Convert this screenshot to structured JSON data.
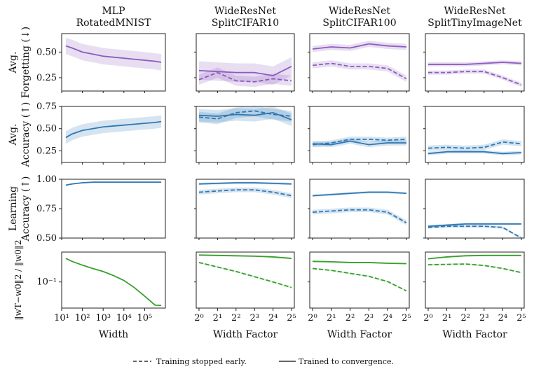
{
  "colors": {
    "forgetting": "#8e5bbf",
    "accuracy": "#2f78b4",
    "learning": "#2f78b4",
    "weight": "#37a02c"
  },
  "columns": [
    {
      "model": "MLP",
      "dataset": "RotatedMNIST",
      "xlabel": "Width"
    },
    {
      "model": "WideResNet",
      "dataset": "SplitCIFAR10",
      "xlabel": "Width Factor"
    },
    {
      "model": "WideResNet",
      "dataset": "SplitCIFAR100",
      "xlabel": "Width Factor"
    },
    {
      "model": "WideResNet",
      "dataset": "SplitTinyImageNet",
      "xlabel": "Width Factor"
    }
  ],
  "rows": [
    {
      "label_1": "Avg.",
      "label_2": "Forgetting (↓)",
      "yticks": [
        "0.25",
        "0.50"
      ]
    },
    {
      "label_1": "Avg.",
      "label_2": "Accuracy (↑)",
      "yticks": [
        "0.25",
        "0.50",
        "0.75"
      ]
    },
    {
      "label_1": "Learning",
      "label_2": "Accuracy (↑)",
      "yticks": [
        "0.50",
        "0.75",
        "1.00"
      ]
    },
    {
      "label_1": "‖wT−w0‖2 / ‖w0‖2",
      "label_2": "",
      "yticks": [
        "10⁻¹"
      ]
    }
  ],
  "legend": {
    "early": "Training stopped early.",
    "converged": "Trained to convergence."
  },
  "chart_data": {
    "type": "line",
    "x_mlp_log10": [
      1.2,
      1.5,
      2,
      2.5,
      3,
      3.5,
      4,
      4.5,
      5,
      5.5,
      5.8
    ],
    "x_mlp_ticks": [
      "10¹",
      "10²",
      "10³",
      "10⁴",
      "10⁵"
    ],
    "x_wrn_log2": [
      0,
      1,
      2,
      3,
      4,
      5
    ],
    "x_wrn_ticks": [
      "2⁰",
      "2¹",
      "2²",
      "2³",
      "2⁴",
      "2⁵"
    ],
    "ylims": [
      [
        0.12,
        0.68
      ],
      [
        0.12,
        0.75
      ],
      [
        0.5,
        1.0
      ],
      [
        -1.7,
        -0.2
      ]
    ],
    "panels": [
      {
        "row": 0,
        "col": 0,
        "series": [
          {
            "style": "solid",
            "values": [
              0.56,
              0.54,
              0.5,
              0.48,
              0.46,
              0.45,
              0.44,
              0.43,
              0.42,
              0.41,
              0.4
            ],
            "band": 0.08
          }
        ]
      },
      {
        "row": 0,
        "col": 1,
        "series": [
          {
            "style": "solid",
            "values": [
              0.32,
              0.31,
              0.3,
              0.3,
              0.27,
              0.36
            ],
            "band": 0.09
          },
          {
            "style": "dashed",
            "values": [
              0.23,
              0.3,
              0.22,
              0.21,
              0.24,
              0.22
            ],
            "band": 0.05
          }
        ]
      },
      {
        "row": 0,
        "col": 2,
        "series": [
          {
            "style": "solid",
            "values": [
              0.53,
              0.55,
              0.54,
              0.58,
              0.56,
              0.55
            ],
            "band": 0.03
          },
          {
            "style": "dashed",
            "values": [
              0.37,
              0.39,
              0.36,
              0.36,
              0.34,
              0.24
            ],
            "band": 0.03
          }
        ]
      },
      {
        "row": 0,
        "col": 3,
        "series": [
          {
            "style": "solid",
            "values": [
              0.38,
              0.38,
              0.38,
              0.39,
              0.4,
              0.39
            ],
            "band": 0.02
          },
          {
            "style": "dashed",
            "values": [
              0.3,
              0.3,
              0.31,
              0.31,
              0.25,
              0.18
            ],
            "band": 0.02
          }
        ]
      },
      {
        "row": 1,
        "col": 0,
        "series": [
          {
            "style": "solid",
            "values": [
              0.4,
              0.44,
              0.48,
              0.5,
              0.52,
              0.53,
              0.54,
              0.55,
              0.56,
              0.57,
              0.58
            ],
            "band": 0.07
          }
        ]
      },
      {
        "row": 1,
        "col": 1,
        "series": [
          {
            "style": "solid",
            "values": [
              0.65,
              0.64,
              0.66,
              0.65,
              0.68,
              0.6
            ],
            "band": 0.07
          },
          {
            "style": "dashed",
            "values": [
              0.63,
              0.61,
              0.68,
              0.7,
              0.66,
              0.64
            ],
            "band": 0.06
          }
        ]
      },
      {
        "row": 1,
        "col": 2,
        "series": [
          {
            "style": "solid",
            "values": [
              0.33,
              0.32,
              0.36,
              0.32,
              0.34,
              0.34
            ],
            "band": 0.03
          },
          {
            "style": "dashed",
            "values": [
              0.32,
              0.34,
              0.38,
              0.38,
              0.37,
              0.38
            ],
            "band": 0.03
          }
        ]
      },
      {
        "row": 1,
        "col": 3,
        "series": [
          {
            "style": "solid",
            "values": [
              0.22,
              0.24,
              0.24,
              0.24,
              0.22,
              0.23
            ],
            "band": 0.02
          },
          {
            "style": "dashed",
            "values": [
              0.28,
              0.29,
              0.28,
              0.29,
              0.35,
              0.33
            ],
            "band": 0.03
          }
        ]
      },
      {
        "row": 2,
        "col": 0,
        "series": [
          {
            "style": "solid",
            "values": [
              0.95,
              0.96,
              0.97,
              0.975,
              0.975,
              0.975,
              0.975,
              0.975,
              0.975,
              0.975,
              0.975
            ],
            "band": 0.005
          }
        ]
      },
      {
        "row": 2,
        "col": 1,
        "series": [
          {
            "style": "solid",
            "values": [
              0.96,
              0.965,
              0.97,
              0.97,
              0.965,
              0.96
            ],
            "band": 0.01
          },
          {
            "style": "dashed",
            "values": [
              0.89,
              0.9,
              0.91,
              0.91,
              0.89,
              0.86
            ],
            "band": 0.02
          }
        ]
      },
      {
        "row": 2,
        "col": 2,
        "series": [
          {
            "style": "solid",
            "values": [
              0.86,
              0.87,
              0.88,
              0.89,
              0.89,
              0.88
            ],
            "band": 0.01
          },
          {
            "style": "dashed",
            "values": [
              0.72,
              0.73,
              0.74,
              0.74,
              0.72,
              0.63
            ],
            "band": 0.02
          }
        ]
      },
      {
        "row": 2,
        "col": 3,
        "series": [
          {
            "style": "solid",
            "values": [
              0.6,
              0.61,
              0.62,
              0.62,
              0.62,
              0.62
            ],
            "band": 0.01
          },
          {
            "style": "dashed",
            "values": [
              0.59,
              0.6,
              0.6,
              0.6,
              0.59,
              0.5
            ],
            "band": 0.01
          }
        ]
      },
      {
        "row": 3,
        "col": 0,
        "series": [
          {
            "style": "solid",
            "values": [
              -0.37,
              -0.45,
              -0.55,
              -0.64,
              -0.72,
              -0.83,
              -0.96,
              -1.15,
              -1.38,
              -1.62,
              -1.63
            ],
            "band": 0.0
          }
        ]
      },
      {
        "row": 3,
        "col": 1,
        "series": [
          {
            "style": "solid",
            "values": [
              -0.28,
              -0.29,
              -0.3,
              -0.31,
              -0.33,
              -0.37
            ],
            "band": 0.02
          },
          {
            "style": "dashed",
            "values": [
              -0.48,
              -0.6,
              -0.72,
              -0.86,
              -1.0,
              -1.15
            ],
            "band": 0.02
          }
        ]
      },
      {
        "row": 3,
        "col": 2,
        "series": [
          {
            "style": "solid",
            "values": [
              -0.45,
              -0.46,
              -0.48,
              -0.48,
              -0.5,
              -0.51
            ],
            "band": 0.02
          },
          {
            "style": "dashed",
            "values": [
              -0.64,
              -0.69,
              -0.77,
              -0.85,
              -0.99,
              -1.24
            ],
            "band": 0.02
          }
        ]
      },
      {
        "row": 3,
        "col": 3,
        "series": [
          {
            "style": "solid",
            "values": [
              -0.38,
              -0.33,
              -0.3,
              -0.29,
              -0.29,
              -0.29
            ],
            "band": 0.02
          },
          {
            "style": "dashed",
            "values": [
              -0.54,
              -0.53,
              -0.52,
              -0.56,
              -0.64,
              -0.75
            ],
            "band": 0.02
          }
        ]
      }
    ]
  }
}
